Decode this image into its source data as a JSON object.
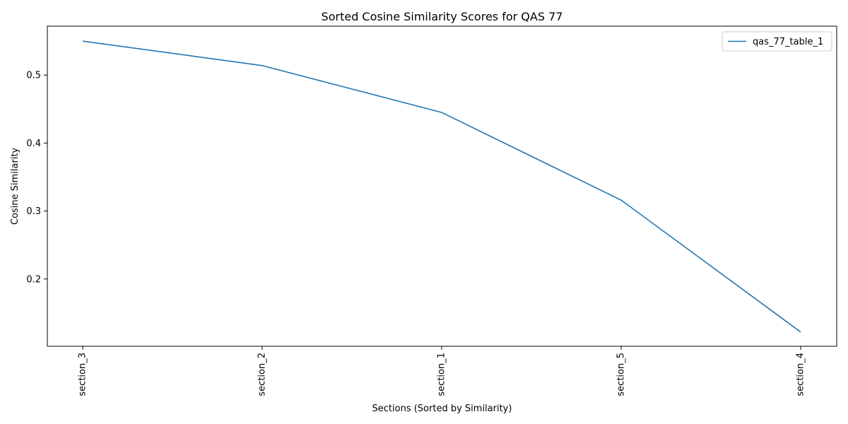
{
  "chart_data": {
    "type": "line",
    "title": "Sorted Cosine Similarity Scores for QAS 77",
    "xlabel": "Sections (Sorted by Similarity)",
    "ylabel": "Cosine Similarity",
    "categories": [
      "section_3",
      "section_2",
      "section_1",
      "section_5",
      "section_4"
    ],
    "series": [
      {
        "name": "qas_77_table_1",
        "values": [
          0.55,
          0.514,
          0.445,
          0.316,
          0.122
        ],
        "color": "#1f77b4"
      }
    ],
    "ylim": [
      0.101,
      0.572
    ],
    "yticks": [
      0.2,
      0.3,
      0.4,
      0.5
    ],
    "ytick_labels": [
      "0.2",
      "0.3",
      "0.4",
      "0.5"
    ],
    "grid": false,
    "legend_position": "top-right"
  }
}
